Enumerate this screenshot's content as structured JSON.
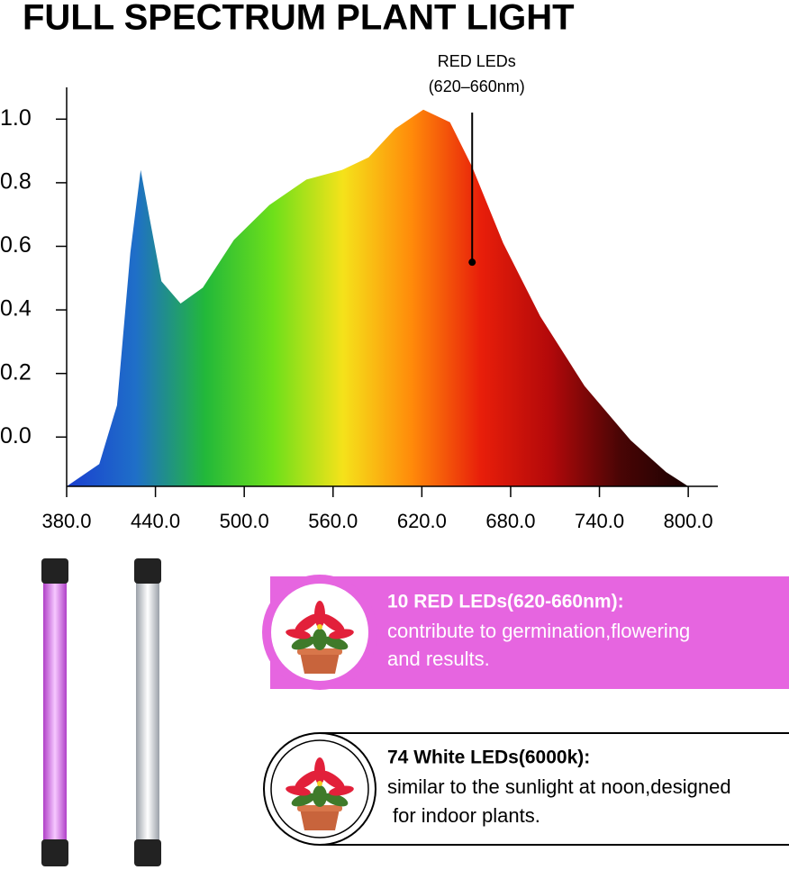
{
  "chart_data": {
    "type": "area",
    "title": "FULL SPECTRUM PLANT LIGHT",
    "x": [
      380,
      402,
      414,
      423,
      430,
      436,
      444,
      457,
      472,
      493,
      517,
      542,
      566,
      584,
      602,
      621,
      639,
      654,
      675,
      700,
      730,
      761,
      785,
      800
    ],
    "values": [
      -0.155,
      -0.085,
      0.1,
      0.58,
      0.84,
      0.69,
      0.49,
      0.42,
      0.47,
      0.62,
      0.73,
      0.81,
      0.84,
      0.88,
      0.97,
      1.03,
      0.99,
      0.85,
      0.61,
      0.38,
      0.16,
      -0.01,
      -0.11,
      -0.155
    ],
    "gradient": [
      "#1a3fd0",
      "#1f6fc8",
      "#22b83a",
      "#6fe01a",
      "#f5e21a",
      "#ff8a0a",
      "#e81e0a",
      "#b3090a",
      "#4a0505",
      "#1a0202"
    ],
    "xlim": [
      380,
      820
    ],
    "ylim": [
      -0.155,
      1.1
    ],
    "xticks": [
      {
        "value": 380,
        "label": "380.0"
      },
      {
        "value": 440,
        "label": "440.0"
      },
      {
        "value": 500,
        "label": "500.0"
      },
      {
        "value": 560,
        "label": "560.0"
      },
      {
        "value": 620,
        "label": "620.0"
      },
      {
        "value": 680,
        "label": "680.0"
      },
      {
        "value": 740,
        "label": "740.0"
      },
      {
        "value": 800,
        "label": "800.0"
      }
    ],
    "yticks": [
      {
        "value": 0,
        "label": "0.0"
      },
      0.2,
      0.4,
      0.6,
      0.8,
      {
        "value": 1,
        "label": "1.0"
      }
    ],
    "annotation": {
      "lines": [
        "RED LEDs",
        "(620–660nm)"
      ],
      "x": 654,
      "y": 0.55
    }
  },
  "cards": [
    {
      "heading": "10 RED LEDs(620-660nm):",
      "lines": [
        "contribute to germination,flowering",
        "and results."
      ]
    },
    {
      "heading": "74 White LEDs(6000k):",
      "lines": [
        "similar to the sunlight at noon,designed",
        "for indoor plants."
      ]
    }
  ]
}
